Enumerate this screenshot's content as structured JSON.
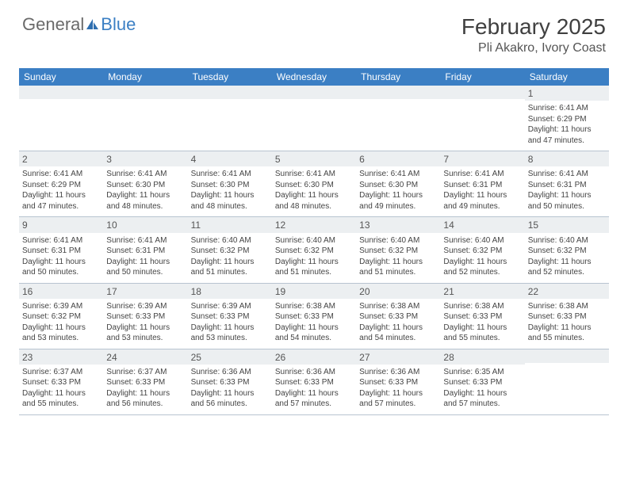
{
  "logo": {
    "text1": "General",
    "text2": "Blue"
  },
  "title": "February 2025",
  "location": "Pli Akakro, Ivory Coast",
  "colors": {
    "header_bar": "#3b7fc4",
    "band": "#eceff1",
    "rule": "#b8c4d0"
  },
  "weekdays": [
    "Sunday",
    "Monday",
    "Tuesday",
    "Wednesday",
    "Thursday",
    "Friday",
    "Saturday"
  ],
  "weeks": [
    [
      {
        "n": "",
        "sr": "",
        "ss": "",
        "d1": "",
        "d2": ""
      },
      {
        "n": "",
        "sr": "",
        "ss": "",
        "d1": "",
        "d2": ""
      },
      {
        "n": "",
        "sr": "",
        "ss": "",
        "d1": "",
        "d2": ""
      },
      {
        "n": "",
        "sr": "",
        "ss": "",
        "d1": "",
        "d2": ""
      },
      {
        "n": "",
        "sr": "",
        "ss": "",
        "d1": "",
        "d2": ""
      },
      {
        "n": "",
        "sr": "",
        "ss": "",
        "d1": "",
        "d2": ""
      },
      {
        "n": "1",
        "sr": "Sunrise: 6:41 AM",
        "ss": "Sunset: 6:29 PM",
        "d1": "Daylight: 11 hours",
        "d2": "and 47 minutes."
      }
    ],
    [
      {
        "n": "2",
        "sr": "Sunrise: 6:41 AM",
        "ss": "Sunset: 6:29 PM",
        "d1": "Daylight: 11 hours",
        "d2": "and 47 minutes."
      },
      {
        "n": "3",
        "sr": "Sunrise: 6:41 AM",
        "ss": "Sunset: 6:30 PM",
        "d1": "Daylight: 11 hours",
        "d2": "and 48 minutes."
      },
      {
        "n": "4",
        "sr": "Sunrise: 6:41 AM",
        "ss": "Sunset: 6:30 PM",
        "d1": "Daylight: 11 hours",
        "d2": "and 48 minutes."
      },
      {
        "n": "5",
        "sr": "Sunrise: 6:41 AM",
        "ss": "Sunset: 6:30 PM",
        "d1": "Daylight: 11 hours",
        "d2": "and 48 minutes."
      },
      {
        "n": "6",
        "sr": "Sunrise: 6:41 AM",
        "ss": "Sunset: 6:30 PM",
        "d1": "Daylight: 11 hours",
        "d2": "and 49 minutes."
      },
      {
        "n": "7",
        "sr": "Sunrise: 6:41 AM",
        "ss": "Sunset: 6:31 PM",
        "d1": "Daylight: 11 hours",
        "d2": "and 49 minutes."
      },
      {
        "n": "8",
        "sr": "Sunrise: 6:41 AM",
        "ss": "Sunset: 6:31 PM",
        "d1": "Daylight: 11 hours",
        "d2": "and 50 minutes."
      }
    ],
    [
      {
        "n": "9",
        "sr": "Sunrise: 6:41 AM",
        "ss": "Sunset: 6:31 PM",
        "d1": "Daylight: 11 hours",
        "d2": "and 50 minutes."
      },
      {
        "n": "10",
        "sr": "Sunrise: 6:41 AM",
        "ss": "Sunset: 6:31 PM",
        "d1": "Daylight: 11 hours",
        "d2": "and 50 minutes."
      },
      {
        "n": "11",
        "sr": "Sunrise: 6:40 AM",
        "ss": "Sunset: 6:32 PM",
        "d1": "Daylight: 11 hours",
        "d2": "and 51 minutes."
      },
      {
        "n": "12",
        "sr": "Sunrise: 6:40 AM",
        "ss": "Sunset: 6:32 PM",
        "d1": "Daylight: 11 hours",
        "d2": "and 51 minutes."
      },
      {
        "n": "13",
        "sr": "Sunrise: 6:40 AM",
        "ss": "Sunset: 6:32 PM",
        "d1": "Daylight: 11 hours",
        "d2": "and 51 minutes."
      },
      {
        "n": "14",
        "sr": "Sunrise: 6:40 AM",
        "ss": "Sunset: 6:32 PM",
        "d1": "Daylight: 11 hours",
        "d2": "and 52 minutes."
      },
      {
        "n": "15",
        "sr": "Sunrise: 6:40 AM",
        "ss": "Sunset: 6:32 PM",
        "d1": "Daylight: 11 hours",
        "d2": "and 52 minutes."
      }
    ],
    [
      {
        "n": "16",
        "sr": "Sunrise: 6:39 AM",
        "ss": "Sunset: 6:32 PM",
        "d1": "Daylight: 11 hours",
        "d2": "and 53 minutes."
      },
      {
        "n": "17",
        "sr": "Sunrise: 6:39 AM",
        "ss": "Sunset: 6:33 PM",
        "d1": "Daylight: 11 hours",
        "d2": "and 53 minutes."
      },
      {
        "n": "18",
        "sr": "Sunrise: 6:39 AM",
        "ss": "Sunset: 6:33 PM",
        "d1": "Daylight: 11 hours",
        "d2": "and 53 minutes."
      },
      {
        "n": "19",
        "sr": "Sunrise: 6:38 AM",
        "ss": "Sunset: 6:33 PM",
        "d1": "Daylight: 11 hours",
        "d2": "and 54 minutes."
      },
      {
        "n": "20",
        "sr": "Sunrise: 6:38 AM",
        "ss": "Sunset: 6:33 PM",
        "d1": "Daylight: 11 hours",
        "d2": "and 54 minutes."
      },
      {
        "n": "21",
        "sr": "Sunrise: 6:38 AM",
        "ss": "Sunset: 6:33 PM",
        "d1": "Daylight: 11 hours",
        "d2": "and 55 minutes."
      },
      {
        "n": "22",
        "sr": "Sunrise: 6:38 AM",
        "ss": "Sunset: 6:33 PM",
        "d1": "Daylight: 11 hours",
        "d2": "and 55 minutes."
      }
    ],
    [
      {
        "n": "23",
        "sr": "Sunrise: 6:37 AM",
        "ss": "Sunset: 6:33 PM",
        "d1": "Daylight: 11 hours",
        "d2": "and 55 minutes."
      },
      {
        "n": "24",
        "sr": "Sunrise: 6:37 AM",
        "ss": "Sunset: 6:33 PM",
        "d1": "Daylight: 11 hours",
        "d2": "and 56 minutes."
      },
      {
        "n": "25",
        "sr": "Sunrise: 6:36 AM",
        "ss": "Sunset: 6:33 PM",
        "d1": "Daylight: 11 hours",
        "d2": "and 56 minutes."
      },
      {
        "n": "26",
        "sr": "Sunrise: 6:36 AM",
        "ss": "Sunset: 6:33 PM",
        "d1": "Daylight: 11 hours",
        "d2": "and 57 minutes."
      },
      {
        "n": "27",
        "sr": "Sunrise: 6:36 AM",
        "ss": "Sunset: 6:33 PM",
        "d1": "Daylight: 11 hours",
        "d2": "and 57 minutes."
      },
      {
        "n": "28",
        "sr": "Sunrise: 6:35 AM",
        "ss": "Sunset: 6:33 PM",
        "d1": "Daylight: 11 hours",
        "d2": "and 57 minutes."
      },
      {
        "n": "",
        "sr": "",
        "ss": "",
        "d1": "",
        "d2": ""
      }
    ]
  ]
}
